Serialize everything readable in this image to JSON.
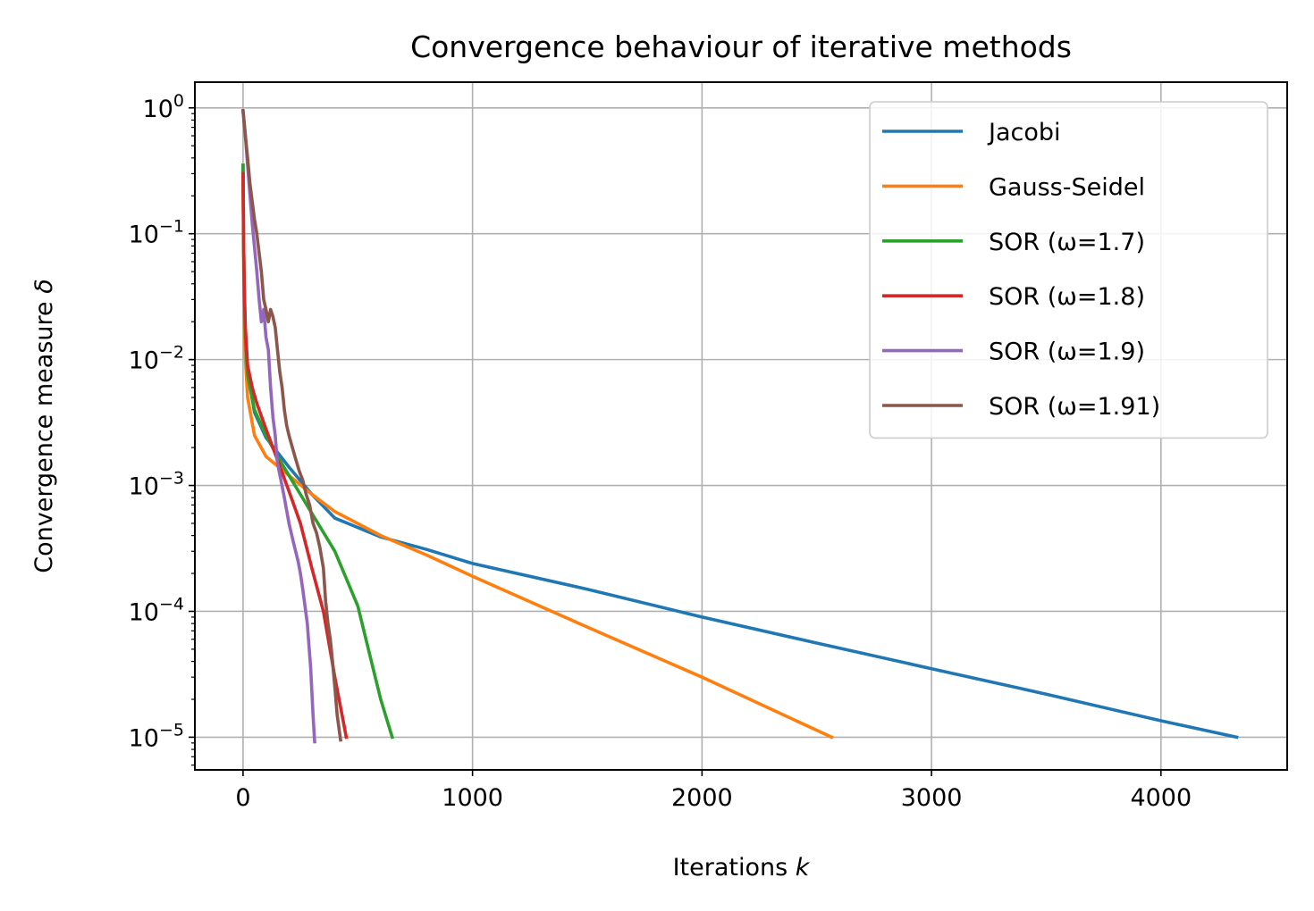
{
  "chart_data": {
    "type": "line",
    "title": "Convergence behaviour of iterative methods",
    "xlabel_text": "Iterations ",
    "xlabel_var": "k",
    "ylabel_text": "Convergence measure ",
    "ylabel_var": "δ",
    "yscale": "log",
    "xlim": [
      -210,
      4550
    ],
    "ylim": [
      5.5e-06,
      1.6
    ],
    "xticks": [
      0,
      1000,
      2000,
      3000,
      4000
    ],
    "xtick_labels": [
      "0",
      "1000",
      "2000",
      "3000",
      "4000"
    ],
    "yticks": [
      1,
      0.1,
      0.01,
      0.001,
      0.0001,
      1e-05
    ],
    "ytick_base": "10",
    "ytick_exponents": [
      "0",
      "−1",
      "−2",
      "−3",
      "−4",
      "−5"
    ],
    "grid": true,
    "legend_position": "top-right",
    "series": [
      {
        "name": "Jacobi",
        "color": "#1f77b4",
        "x": [
          0,
          1,
          2,
          3,
          5,
          10,
          20,
          50,
          100,
          200,
          300,
          400,
          600,
          800,
          1000,
          1500,
          2000,
          2500,
          3000,
          3500,
          4000,
          4330
        ],
        "y": [
          0.35,
          0.2,
          0.12,
          0.07,
          0.035,
          0.015,
          0.008,
          0.0038,
          0.0024,
          0.0014,
          0.00085,
          0.00055,
          0.00039,
          0.00031,
          0.00024,
          0.00015,
          9e-05,
          5.6e-05,
          3.5e-05,
          2.2e-05,
          1.35e-05,
          1e-05
        ]
      },
      {
        "name": "Gauss-Seidel",
        "color": "#ff7f0e",
        "x": [
          0,
          1,
          2,
          3,
          5,
          10,
          20,
          50,
          100,
          200,
          300,
          400,
          600,
          800,
          1000,
          1500,
          2000,
          2565
        ],
        "y": [
          0.3,
          0.15,
          0.08,
          0.045,
          0.022,
          0.01,
          0.005,
          0.0025,
          0.0017,
          0.0012,
          0.00085,
          0.00062,
          0.0004,
          0.00028,
          0.00019,
          7.5e-05,
          3e-05,
          1e-05
        ]
      },
      {
        "name": "SOR (ω=1.7)",
        "color": "#2ca02c",
        "x": [
          0,
          2,
          5,
          10,
          20,
          50,
          100,
          150,
          200,
          250,
          300,
          400,
          500,
          600,
          650
        ],
        "y": [
          0.35,
          0.1,
          0.04,
          0.015,
          0.0075,
          0.004,
          0.0025,
          0.0017,
          0.0012,
          0.00085,
          0.0006,
          0.0003,
          0.00011,
          2e-05,
          1e-05
        ]
      },
      {
        "name": "SOR (ω=1.8)",
        "color": "#d62728",
        "x": [
          0,
          2,
          5,
          10,
          20,
          40,
          60,
          100,
          150,
          200,
          250,
          300,
          350,
          400,
          450
        ],
        "y": [
          0.3,
          0.1,
          0.04,
          0.018,
          0.009,
          0.006,
          0.0045,
          0.0028,
          0.0016,
          0.0009,
          0.0005,
          0.00022,
          0.0001,
          3e-05,
          1e-05
        ]
      },
      {
        "name": "SOR (ω=1.9)",
        "color": "#9467bd",
        "x": [
          0,
          10,
          20,
          40,
          60,
          70,
          80,
          90,
          100,
          110,
          120,
          130,
          140,
          150,
          165,
          180,
          200,
          220,
          240,
          250,
          260,
          280,
          295,
          305,
          312
        ],
        "y": [
          0.95,
          0.6,
          0.35,
          0.12,
          0.05,
          0.03,
          0.02,
          0.025,
          0.015,
          0.012,
          0.006,
          0.0035,
          0.0025,
          0.0015,
          0.0011,
          0.0008,
          0.0005,
          0.00035,
          0.00025,
          0.0002,
          0.00015,
          8e-05,
          3.5e-05,
          1.5e-05,
          9.2e-06
        ]
      },
      {
        "name": "SOR (ω=1.91)",
        "color": "#8c564b",
        "x": [
          0,
          10,
          20,
          30,
          50,
          60,
          70,
          80,
          90,
          100,
          110,
          120,
          130,
          140,
          150,
          160,
          170,
          180,
          190,
          200,
          215,
          230,
          245,
          260,
          275,
          290,
          305,
          320,
          335,
          350,
          360,
          370,
          380,
          390,
          400,
          410,
          425
        ],
        "y": [
          0.95,
          0.6,
          0.4,
          0.25,
          0.13,
          0.1,
          0.07,
          0.05,
          0.03,
          0.025,
          0.02,
          0.025,
          0.022,
          0.018,
          0.012,
          0.008,
          0.006,
          0.004,
          0.003,
          0.0025,
          0.002,
          0.0016,
          0.0013,
          0.0011,
          0.00085,
          0.0007,
          0.0005,
          0.00042,
          0.00032,
          0.00022,
          0.00012,
          8e-05,
          6e-05,
          4e-05,
          2.5e-05,
          1.5e-05,
          9.5e-06
        ]
      }
    ]
  }
}
